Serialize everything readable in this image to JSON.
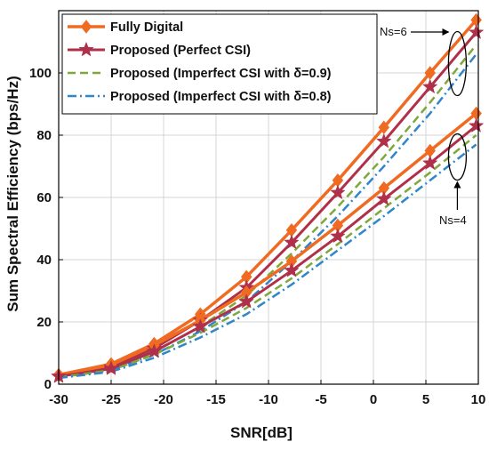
{
  "chart_data": {
    "type": "line",
    "xlabel": "SNR[dB]",
    "ylabel": "Sum Spectral Efficiency (bps/Hz)",
    "x": [
      -30,
      -25,
      -20.9,
      -16.5,
      -12.1,
      -7.8,
      -3.4,
      1,
      5.4,
      9.8
    ],
    "xlim": [
      -30,
      10
    ],
    "ylim": [
      0,
      120
    ],
    "xticks": [
      -30,
      -25,
      -20,
      -15,
      -10,
      -5,
      0,
      5,
      10
    ],
    "yticks": [
      0,
      20,
      40,
      60,
      80,
      100
    ],
    "grid": true,
    "legend_position": "top-left",
    "series": [
      {
        "name": "Fully Digital",
        "group": "Ns=6",
        "style": "solid-diamond",
        "color": "#f06b22",
        "values": [
          3,
          6.5,
          13,
          22.5,
          34.5,
          49.5,
          65.5,
          82.5,
          100,
          117
        ]
      },
      {
        "name": "Proposed (Perfect CSI)",
        "group": "Ns=6",
        "style": "solid-star",
        "color": "#b0304a",
        "values": [
          2.5,
          5.5,
          11.5,
          20.5,
          31,
          45.5,
          61.5,
          78,
          95.5,
          113
        ]
      },
      {
        "name": "Proposed (Imperfect CSI with δ=0.9)",
        "group": "Ns=6",
        "style": "dashed",
        "color": "#7fa83a",
        "values": [
          2.2,
          5,
          10.5,
          18.5,
          28.5,
          42,
          57,
          73,
          90.5,
          109
        ]
      },
      {
        "name": "Proposed (Imperfect CSI with δ=0.8)",
        "group": "Ns=6",
        "style": "dashdot",
        "color": "#2f86c8",
        "values": [
          2,
          4.5,
          9.5,
          17,
          26.5,
          39.5,
          54,
          70,
          87,
          106
        ]
      },
      {
        "name": "Fully Digital",
        "group": "Ns=4",
        "style": "solid-diamond",
        "color": "#f06b22",
        "values": [
          3,
          6.2,
          12.5,
          20.5,
          29.5,
          39.5,
          51,
          63,
          75,
          87
        ]
      },
      {
        "name": "Proposed (Perfect CSI)",
        "group": "Ns=4",
        "style": "solid-star",
        "color": "#b0304a",
        "values": [
          2.5,
          5,
          10.5,
          18.5,
          26.5,
          36.5,
          47.5,
          59.5,
          71,
          83
        ]
      },
      {
        "name": "Proposed (Imperfect CSI with δ=0.9)",
        "group": "Ns=4",
        "style": "dashed",
        "color": "#7fa83a",
        "values": [
          2.2,
          4.5,
          9.5,
          16.5,
          24.5,
          34,
          45,
          56.5,
          68,
          80
        ]
      },
      {
        "name": "Proposed (Imperfect CSI with δ=0.8)",
        "group": "Ns=4",
        "style": "dashdot",
        "color": "#2f86c8",
        "values": [
          2,
          4,
          8.5,
          15,
          22.5,
          32,
          43,
          54,
          65.5,
          77
        ]
      }
    ],
    "legend": [
      {
        "label": "Fully Digital",
        "style": "solid-diamond",
        "color": "#f06b22"
      },
      {
        "label": "Proposed (Perfect CSI)",
        "style": "solid-star",
        "color": "#b0304a"
      },
      {
        "label": "Proposed (Imperfect CSI with δ=0.9)",
        "style": "dashed",
        "color": "#7fa83a"
      },
      {
        "label": "Proposed (Imperfect CSI with δ=0.8)",
        "style": "dashdot",
        "color": "#2f86c8"
      }
    ],
    "annotations": [
      {
        "text": "Ns=6"
      },
      {
        "text": "Ns=4"
      }
    ]
  }
}
